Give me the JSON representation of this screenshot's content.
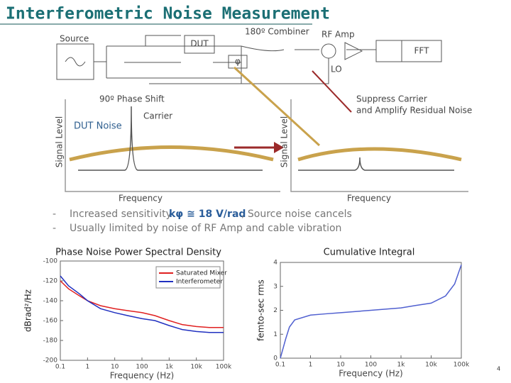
{
  "header": {
    "title": "Interferometric Noise Measurement"
  },
  "diagram": {
    "source": "Source",
    "dut": "DUT",
    "combiner": "180º Combiner",
    "phi": "φ",
    "rf_amp": "RF Amp",
    "fft": "FFT",
    "lo": "LO",
    "phase_shift": "90º Phase Shift"
  },
  "spectra": {
    "left": {
      "y_label": "Signal Level",
      "x_label": "Frequency",
      "dut_noise": "DUT Noise",
      "carrier": "Carrier"
    },
    "right": {
      "y_label": "Signal Level",
      "x_label": "Frequency",
      "note": [
        "Suppress Carrier",
        "and Amplify Residual Noise"
      ]
    }
  },
  "bullets": [
    {
      "text": "Increased sensitivity",
      "formula": "kφ ≅ 18 V/rad",
      "rest": ", Source noise cancels"
    },
    {
      "text": "Usually limited by noise of RF Amp and cable vibration"
    }
  ],
  "chart_data": [
    {
      "type": "line",
      "title": "Phase Noise Power Spectral Density",
      "y_label": "dBrad²/Hz",
      "x_label": "Frequency (Hz)",
      "log_x": true,
      "xlim": [
        0.1,
        100000
      ],
      "ylim": [
        -200,
        -100
      ],
      "xticks": [
        0.1,
        1,
        10,
        100,
        {
          "value": 1000,
          "label": "1k"
        },
        {
          "value": 10000,
          "label": "10k"
        },
        {
          "value": 100000,
          "label": "100k"
        }
      ],
      "yticks": [
        -200,
        -180,
        -160,
        -140,
        -120,
        -100
      ],
      "legend": "upper right",
      "x": [
        0.1,
        0.2,
        0.5,
        1,
        3,
        10,
        30,
        100,
        300,
        1000,
        3000,
        10000,
        30000,
        100000
      ],
      "series": [
        {
          "name": "Saturated Mixer",
          "color": "#e02020",
          "values": [
            -120,
            -128,
            -135,
            -140,
            -145,
            -148,
            -150,
            -152,
            -155,
            -160,
            -164,
            -166,
            -167,
            -167
          ]
        },
        {
          "name": "Interferometer",
          "color": "#2030c0",
          "values": [
            -115,
            -125,
            -133,
            -140,
            -148,
            -152,
            -155,
            -158,
            -160,
            -165,
            -169,
            -171,
            -172,
            -172
          ]
        }
      ]
    },
    {
      "type": "line",
      "title": "Cumulative Integral",
      "y_label": "femto-sec rms",
      "x_label": "Frequency (Hz)",
      "log_x": true,
      "xlim": [
        0.1,
        100000
      ],
      "ylim": [
        0,
        4
      ],
      "xticks": [
        0.1,
        1,
        10,
        100,
        {
          "value": 1000,
          "label": "1k"
        },
        {
          "value": 10000,
          "label": "10k"
        },
        {
          "value": 100000,
          "label": "100k"
        }
      ],
      "yticks": [
        0,
        1,
        2,
        3,
        4
      ],
      "x": [
        0.1,
        0.15,
        0.2,
        0.3,
        1,
        3,
        10,
        100,
        1000,
        3000,
        10000,
        30000,
        60000,
        100000
      ],
      "series": [
        {
          "color": "#5060d0",
          "values": [
            0,
            0.8,
            1.3,
            1.6,
            1.8,
            1.85,
            1.9,
            2.0,
            2.1,
            2.2,
            2.3,
            2.6,
            3.1,
            3.9
          ]
        }
      ]
    }
  ],
  "page_number": "4"
}
